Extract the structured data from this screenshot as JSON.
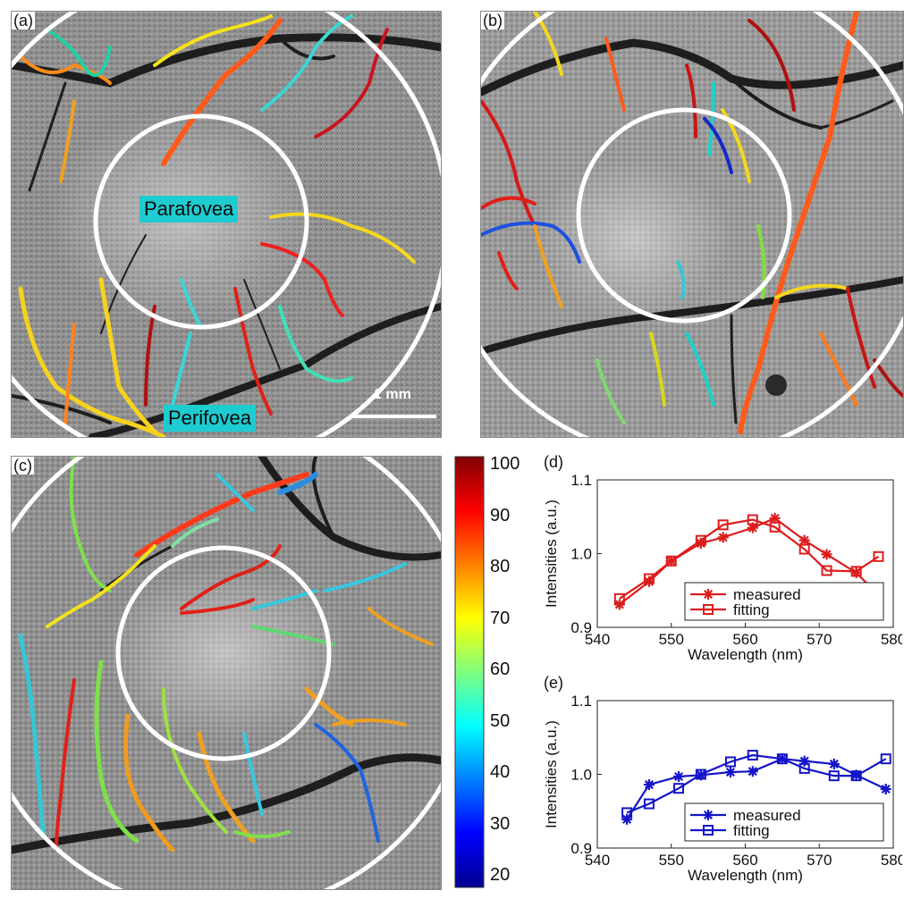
{
  "panels": {
    "a": {
      "label": "(a)",
      "annotations": {
        "parafovea": "Parafovea",
        "perifovea": "Perifovea",
        "scale_bar": "1 mm"
      }
    },
    "b": {
      "label": "(b)"
    },
    "c": {
      "label": "(c)"
    },
    "d": {
      "label": "(d)"
    },
    "e": {
      "label": "(e)"
    }
  },
  "colorbar": {
    "ticks": [
      "100",
      "90",
      "80",
      "70",
      "60",
      "50",
      "40",
      "30",
      "20"
    ],
    "range": [
      20,
      100
    ],
    "colormap": "jet"
  },
  "chart_data": [
    {
      "panel": "d",
      "type": "line",
      "xlabel": "Wavelength (nm)",
      "ylabel": "Intensities (a.u.)",
      "xlim": [
        540,
        580
      ],
      "ylim": [
        0.9,
        1.1
      ],
      "xticks": [
        "540",
        "550",
        "560",
        "570",
        "580"
      ],
      "yticks": [
        "0.9",
        "1.0",
        "1.1"
      ],
      "color": "#dd1c1c",
      "legend_position": "bottom-center",
      "series": [
        {
          "name": "measured",
          "marker": "asterisk",
          "x": [
            543,
            547,
            550,
            554,
            557,
            561,
            564,
            568,
            571,
            575,
            578
          ],
          "y": [
            0.931,
            0.962,
            0.99,
            1.014,
            1.022,
            1.035,
            1.048,
            1.018,
            0.999,
            0.974,
            0.944
          ]
        },
        {
          "name": "fitting",
          "marker": "square",
          "x": [
            543,
            547,
            550,
            554,
            557,
            561,
            564,
            568,
            571,
            575,
            578
          ],
          "y": [
            0.939,
            0.966,
            0.99,
            1.018,
            1.039,
            1.046,
            1.036,
            1.006,
            0.977,
            0.976,
            0.996
          ]
        }
      ]
    },
    {
      "panel": "e",
      "type": "line",
      "xlabel": "Wavelength (nm)",
      "ylabel": "Intensities (a.u.)",
      "xlim": [
        540,
        580
      ],
      "ylim": [
        0.9,
        1.1
      ],
      "xticks": [
        "540",
        "550",
        "560",
        "570",
        "580"
      ],
      "yticks": [
        "0.9",
        "1.0",
        "1.1"
      ],
      "color": "#1414c8",
      "legend_position": "bottom-center",
      "series": [
        {
          "name": "measured",
          "marker": "asterisk",
          "x": [
            544,
            547,
            551,
            554,
            558,
            561,
            565,
            568,
            572,
            575,
            579
          ],
          "y": [
            0.939,
            0.986,
            0.997,
            0.999,
            1.003,
            1.004,
            1.021,
            1.018,
            1.014,
            0.999,
            0.98
          ]
        },
        {
          "name": "fitting",
          "marker": "square",
          "x": [
            544,
            547,
            551,
            554,
            558,
            561,
            565,
            568,
            572,
            575,
            579
          ],
          "y": [
            0.948,
            0.96,
            0.981,
            1.0,
            1.017,
            1.026,
            1.021,
            1.008,
            0.998,
            0.998,
            1.021
          ]
        }
      ]
    }
  ]
}
